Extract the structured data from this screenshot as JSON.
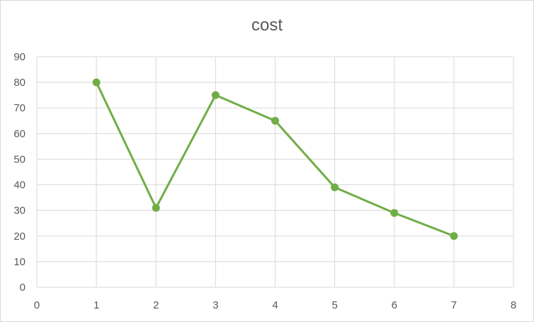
{
  "chart_data": {
    "type": "scatter",
    "title": "cost",
    "xlabel": "",
    "ylabel": "",
    "xlim": [
      0,
      8
    ],
    "ylim": [
      0,
      90
    ],
    "x_ticks": [
      0,
      1,
      2,
      3,
      4,
      5,
      6,
      7,
      8
    ],
    "y_ticks": [
      0,
      10,
      20,
      30,
      40,
      50,
      60,
      70,
      80,
      90
    ],
    "grid": true,
    "legend": "none",
    "series": [
      {
        "x": [
          1,
          2,
          3,
          4,
          5,
          6,
          7
        ],
        "y": [
          80,
          31,
          75,
          65,
          39,
          29,
          20
        ],
        "color": "#70ad47",
        "style": "line-with-markers"
      }
    ]
  },
  "colors": {
    "series": "#70ad47",
    "grid": "#d9d9d9",
    "axis_text": "#595959"
  }
}
